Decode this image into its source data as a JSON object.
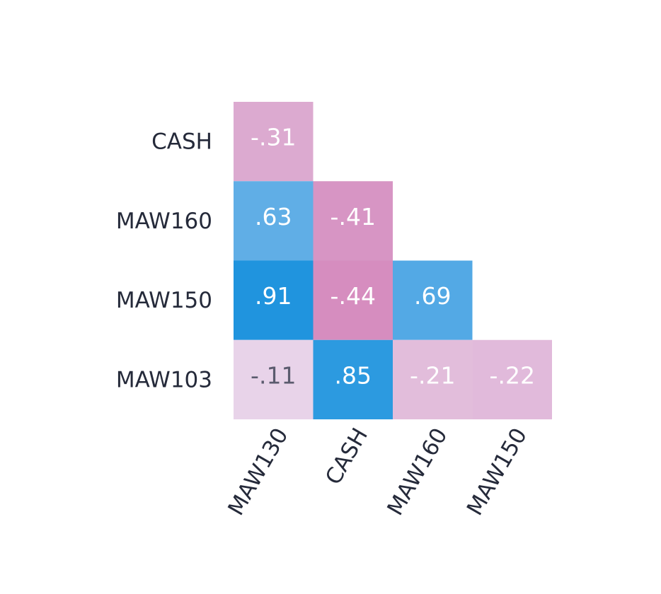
{
  "chart_data": {
    "type": "heatmap",
    "rows": [
      "CASH",
      "MAW160",
      "MAW150",
      "MAW103"
    ],
    "columns": [
      "MAW130",
      "CASH",
      "MAW160",
      "MAW150"
    ],
    "values": [
      [
        -0.31,
        null,
        null,
        null
      ],
      [
        0.63,
        -0.41,
        null,
        null
      ],
      [
        0.91,
        -0.44,
        0.69,
        null
      ],
      [
        -0.11,
        0.85,
        -0.21,
        -0.22
      ]
    ],
    "value_labels": [
      [
        "-.31",
        null,
        null,
        null
      ],
      [
        ".63",
        "-.41",
        null,
        null
      ],
      [
        ".91",
        "-.44",
        ".69",
        null
      ],
      [
        "-.11",
        ".85",
        "-.21",
        "-.22"
      ]
    ],
    "colors": [
      [
        "#dcaad0",
        null,
        null,
        null
      ],
      [
        "#60aee6",
        "#d795c4",
        null,
        null
      ],
      [
        "#2094de",
        "#d68dbf",
        "#53a9e5",
        null
      ],
      [
        "#e8d3e9",
        "#2c9ae0",
        "#e2bddb",
        "#e1badb"
      ]
    ]
  }
}
